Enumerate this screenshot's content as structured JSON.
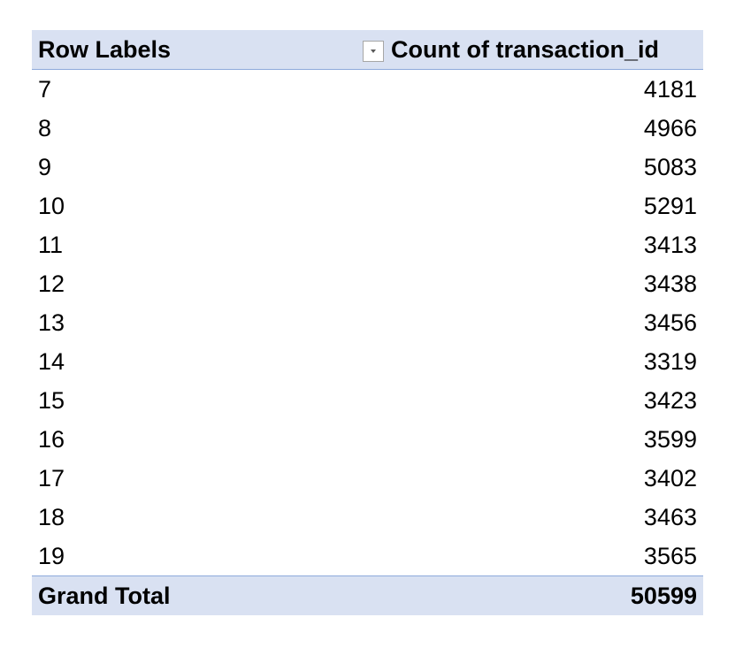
{
  "pivot": {
    "header": {
      "row_labels": "Row Labels",
      "value_field": "Count of transaction_id",
      "filter_icon": "dropdown-filter-icon"
    },
    "rows": [
      {
        "label": "7",
        "value": "4181"
      },
      {
        "label": "8",
        "value": "4966"
      },
      {
        "label": "9",
        "value": "5083"
      },
      {
        "label": "10",
        "value": "5291"
      },
      {
        "label": "11",
        "value": "3413"
      },
      {
        "label": "12",
        "value": "3438"
      },
      {
        "label": "13",
        "value": "3456"
      },
      {
        "label": "14",
        "value": "3319"
      },
      {
        "label": "15",
        "value": "3423"
      },
      {
        "label": "16",
        "value": "3599"
      },
      {
        "label": "17",
        "value": "3402"
      },
      {
        "label": "18",
        "value": "3463"
      },
      {
        "label": "19",
        "value": "3565"
      }
    ],
    "total": {
      "label": "Grand Total",
      "value": "50599"
    },
    "colors": {
      "header_fill": "#d9e1f2",
      "border": "#8ea9db"
    }
  }
}
